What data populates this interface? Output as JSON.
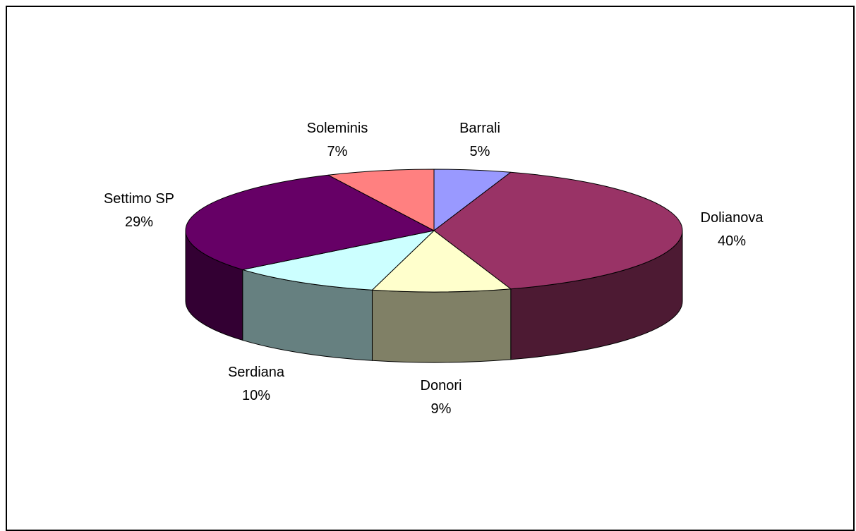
{
  "chart_data": {
    "type": "pie",
    "style": "3d",
    "title": "",
    "slices": [
      {
        "label": "Barrali",
        "value": 5,
        "value_label": "5%",
        "color": "#9999ff",
        "side_color": "#6b6bb3"
      },
      {
        "label": "Dolianova",
        "value": 40,
        "value_label": "40%",
        "color": "#993366",
        "side_color": "#4d1a33"
      },
      {
        "label": "Donori",
        "value": 9,
        "value_label": "9%",
        "color": "#ffffcc",
        "side_color": "#808066"
      },
      {
        "label": "Serdiana",
        "value": 10,
        "value_label": "10%",
        "color": "#ccffff",
        "side_color": "#668080"
      },
      {
        "label": "Settimo SP",
        "value": 29,
        "value_label": "29%",
        "color": "#660066",
        "side_color": "#330033"
      },
      {
        "label": "Soleminis",
        "value": 7,
        "value_label": "7%",
        "color": "#ff8080",
        "side_color": "#b35a5a"
      }
    ]
  }
}
